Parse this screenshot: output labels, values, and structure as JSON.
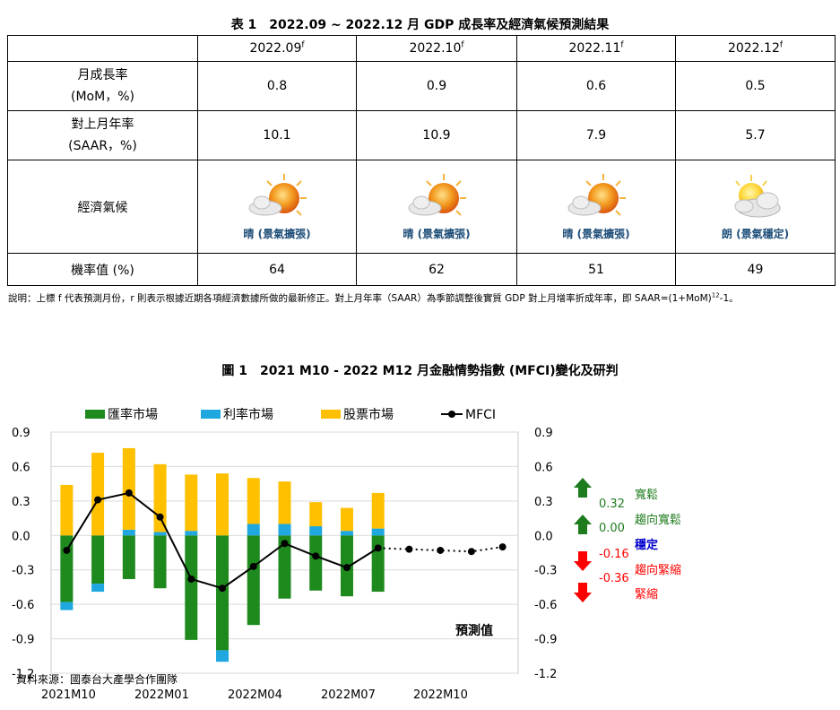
{
  "table": {
    "title": "表 1　2022.09 ~ 2022.12 月  GDP  成長率及經濟氣候預測結果",
    "columns": [
      {
        "label": "2022.09",
        "sup": "f"
      },
      {
        "label": "2022.10",
        "sup": "f"
      },
      {
        "label": "2022.11",
        "sup": "f"
      },
      {
        "label": "2022.12",
        "sup": "f"
      }
    ],
    "mom_label_1": "月成長率",
    "mom_label_2": "(MoM，%)",
    "mom": [
      "0.8",
      "0.9",
      "0.6",
      "0.5"
    ],
    "saar_label_1": "對上月年率",
    "saar_label_2": "(SAAR，%)",
    "saar": [
      "10.1",
      "10.9",
      "7.9",
      "5.7"
    ],
    "climate_label": "經濟氣候",
    "climate": [
      {
        "label": "晴 (景氣擴張)",
        "icon": "sun-cloud-icon"
      },
      {
        "label": "晴 (景氣擴張)",
        "icon": "sun-cloud-icon"
      },
      {
        "label": "晴 (景氣擴張)",
        "icon": "sun-cloud-icon"
      },
      {
        "label": "朗 (景氣穩定)",
        "icon": "cloud-sun-icon"
      }
    ],
    "prob_label": "機率值  (%)",
    "prob": [
      "64",
      "62",
      "51",
      "49"
    ],
    "note": "說明：上標  f  代表預測月份，r  則表示根據近期各項經濟數據所做的最新修正。對上月年率（SAAR）為季節調整後實質  GDP  對上月增率折成年率，即  SAAR=(1+MoM)",
    "note_sup": "12",
    "note_tail": "-1。"
  },
  "chart_data": {
    "type": "bar",
    "title": "圖 1　2021 M10 - 2022 M12  月金融情勢指數  (MFCI)變化及研判",
    "x": [
      "2021M10",
      "2021M11",
      "2021M12",
      "2022M01",
      "2022M02",
      "2022M03",
      "2022M04",
      "2022M05",
      "2022M06",
      "2022M07",
      "2022M08",
      "2022M09",
      "2022M10",
      "2022M11",
      "2022M12"
    ],
    "x_tick_labels": [
      "2021M10",
      "2022M01",
      "2022M04",
      "2022M07",
      "2022M10"
    ],
    "ylim": [
      -1.2,
      0.9
    ],
    "y_ticks": [
      "0.9",
      "0.6",
      "0.3",
      "0.0",
      "-0.3",
      "-0.6",
      "-0.9",
      "-1.2"
    ],
    "stacked": true,
    "series": [
      {
        "name": "匯率市場",
        "color": "#1e8a1e",
        "values": [
          -0.58,
          -0.42,
          -0.38,
          -0.46,
          -0.91,
          -1.0,
          -0.78,
          -0.55,
          -0.48,
          -0.53,
          -0.49,
          null,
          null,
          null,
          null
        ]
      },
      {
        "name": "利率市場",
        "color": "#1fa7e0",
        "values": [
          -0.07,
          -0.07,
          0.05,
          0.03,
          0.04,
          -0.1,
          0.1,
          0.1,
          0.08,
          0.04,
          0.06,
          null,
          null,
          null,
          null
        ]
      },
      {
        "name": "股票市場",
        "color": "#ffc000",
        "values": [
          0.44,
          0.72,
          0.71,
          0.59,
          0.49,
          0.54,
          0.4,
          0.37,
          0.21,
          0.2,
          0.31,
          null,
          null,
          null,
          null
        ]
      }
    ],
    "line": {
      "name": "MFCI",
      "color": "#000000",
      "values": [
        -0.13,
        0.31,
        0.37,
        0.16,
        -0.38,
        -0.46,
        -0.27,
        -0.07,
        -0.18,
        -0.28,
        -0.11,
        -0.12,
        -0.13,
        -0.14,
        -0.1
      ],
      "forecast_from_index": 10
    },
    "legend_position": "top",
    "grid": true,
    "annotation": "預測值",
    "source": "資料來源：國泰台大產學合作團隊",
    "interpretation": [
      {
        "threshold": "0.32",
        "label": "寬鬆",
        "arrow": "up",
        "color": "#1e7b1e",
        "label_color": "#1e7b1e"
      },
      {
        "threshold": "0.00",
        "label": "趨向寬鬆",
        "arrow": "up",
        "color": "#1e7b1e",
        "label_color": "#1e7b1e"
      },
      {
        "threshold": "-0.16",
        "label": "穩定",
        "arrow": "down",
        "color": "#ff0000",
        "label_color": "#0000cc"
      },
      {
        "threshold": "-0.36",
        "label": "趨向緊縮",
        "arrow": "down",
        "color": "#ff0000",
        "label_color": "#ff0000"
      },
      {
        "threshold": "",
        "label": "緊縮",
        "arrow": "down",
        "color": "#ff0000",
        "label_color": "#ff0000"
      }
    ]
  }
}
